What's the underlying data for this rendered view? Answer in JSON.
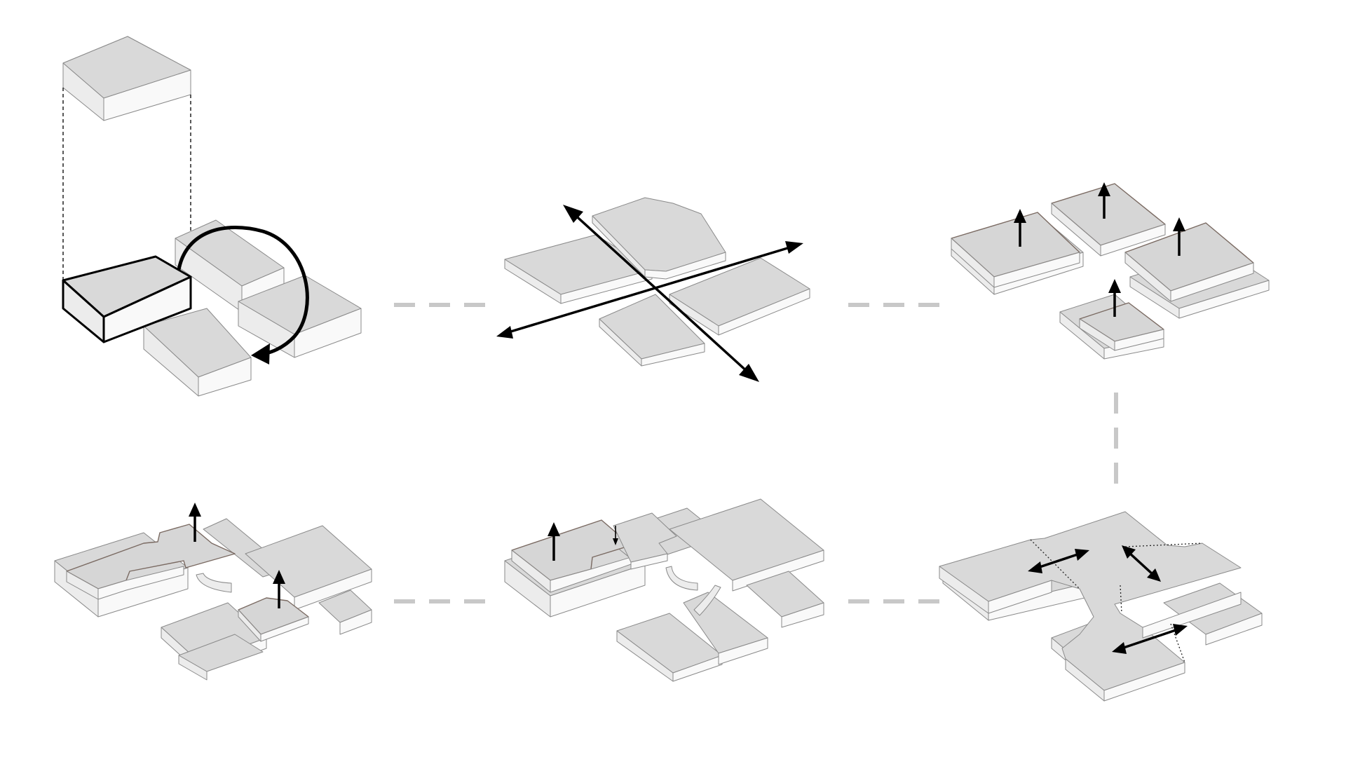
{
  "diagram": {
    "background": "#ffffff",
    "colors": {
      "block_top": "#d9d9d9",
      "block_side_left": "#ececec",
      "block_side_right": "#f9f9f9",
      "edge": "#8a8a8a",
      "highlight_edge": "#7a6a62",
      "connector": "#c8c8c8",
      "arrow": "#000000"
    },
    "steps": [
      {
        "id": "step-1",
        "arrows": [
          "curved-rotation"
        ]
      },
      {
        "id": "step-2",
        "arrows": [
          "double-headed-axis",
          "double-headed-axis"
        ]
      },
      {
        "id": "step-3",
        "arrows": [
          "up",
          "up",
          "up",
          "up"
        ]
      },
      {
        "id": "step-4",
        "arrows": [
          "double-headed",
          "double-headed",
          "double-headed"
        ]
      },
      {
        "id": "step-5",
        "arrows": [
          "up",
          "down"
        ]
      },
      {
        "id": "step-6",
        "arrows": [
          "up",
          "up"
        ]
      }
    ]
  }
}
